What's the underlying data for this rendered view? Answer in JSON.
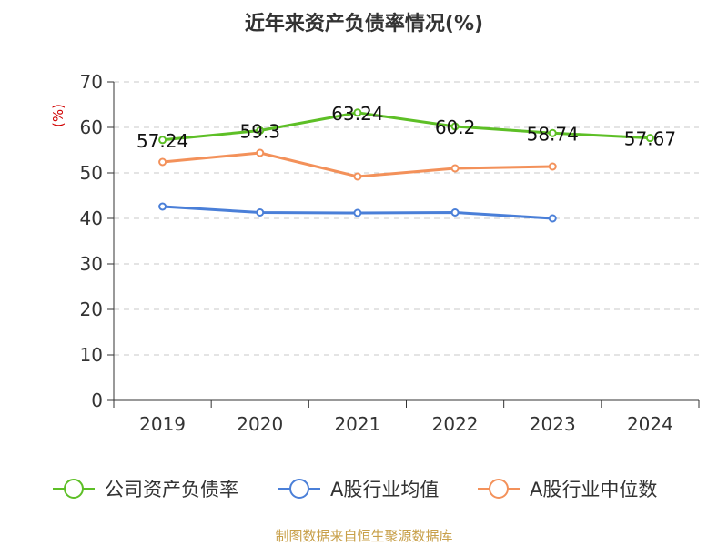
{
  "chart_data": {
    "type": "line",
    "title": "近年来资产负债率情况(%)",
    "ylabel": "(%)",
    "categories": [
      "2019",
      "2020",
      "2021",
      "2022",
      "2023",
      "2024"
    ],
    "yticks": [
      0,
      10,
      20,
      30,
      40,
      50,
      60,
      70
    ],
    "ylim": [
      0,
      70
    ],
    "grid": true,
    "legend_position": "bottom",
    "series": [
      {
        "name": "公司资产负债率",
        "color": "#5dbf26",
        "values": [
          57.24,
          59.3,
          63.24,
          60.2,
          58.74,
          57.67
        ],
        "labels": [
          "57.24",
          "59.3",
          "63.24",
          "60.2",
          "58.74",
          "57.67"
        ]
      },
      {
        "name": "A股行业均值",
        "color": "#4a7fd8",
        "values": [
          42.6,
          41.3,
          41.2,
          41.3,
          40.0,
          null
        ]
      },
      {
        "name": "A股行业中位数",
        "color": "#f3915a",
        "values": [
          52.4,
          54.4,
          49.2,
          51.0,
          51.4,
          null
        ]
      }
    ]
  },
  "source": "制图数据来自恒生聚源数据库"
}
